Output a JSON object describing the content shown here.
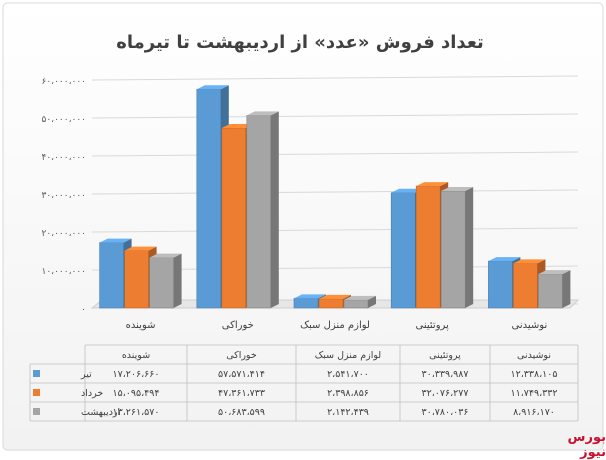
{
  "chart_data": {
    "type": "bar",
    "title": "تعداد فروش «عدد» از اردیبهشت تا تیرماه",
    "categories": [
      "شوینده",
      "خوراکی",
      "لوازم منزل سبک",
      "پروتئینی",
      "نوشیدنی"
    ],
    "series": [
      {
        "name": "تیر",
        "color": "#5b9bd5",
        "values": [
          17206660,
          57571414,
          2541700,
          30339987,
          12338105
        ]
      },
      {
        "name": "خرداد",
        "color": "#ed7d31",
        "values": [
          15095494,
          47361733,
          2398856,
          32076277,
          11749332
        ]
      },
      {
        "name": "اردیبهشت",
        "color": "#a5a5a5",
        "values": [
          13261570,
          50683599,
          2142439,
          30780036,
          8916170
        ]
      }
    ],
    "series_labels": {
      "0": [
        "۱۷،۲۰۶،۶۶۰",
        "۵۷،۵۷۱،۴۱۴",
        "۲،۵۴۱،۷۰۰",
        "۳۰،۳۳۹،۹۸۷",
        "۱۲،۳۳۸،۱۰۵"
      ],
      "1": [
        "۱۵،۰۹۵،۴۹۴",
        "۴۷،۳۶۱،۷۳۳",
        "۲،۳۹۸،۸۵۶",
        "۳۲،۰۷۶،۲۷۷",
        "۱۱،۷۴۹،۳۳۲"
      ],
      "2": [
        "۱۳،۲۶۱،۵۷۰",
        "۵۰،۶۸۳،۵۹۹",
        "۲،۱۴۲،۴۳۹",
        "۳۰،۷۸۰،۰۳۶",
        "۸،۹۱۶،۱۷۰"
      ]
    },
    "yticks": [
      0,
      10000000,
      20000000,
      30000000,
      40000000,
      50000000,
      60000000
    ],
    "ytick_labels": [
      "۰",
      "۱۰،۰۰۰،۰۰۰",
      "۲۰،۰۰۰،۰۰۰",
      "۳۰،۰۰۰،۰۰۰",
      "۴۰،۰۰۰،۰۰۰",
      "۵۰،۰۰۰،۰۰۰",
      "۶۰،۰۰۰،۰۰۰"
    ],
    "ylim": [
      0,
      60000000
    ],
    "grid": true,
    "legend_placement": "data-table",
    "has_data_table": true
  },
  "watermark": "بورس نیوز"
}
